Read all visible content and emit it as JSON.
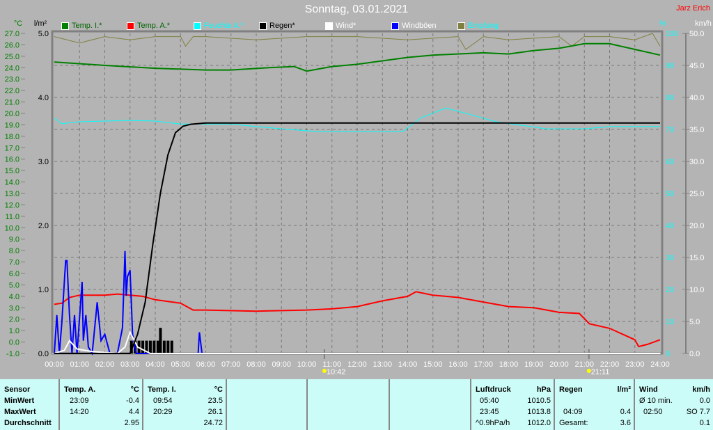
{
  "header": {
    "title": "Sonntag, 03.01.2021",
    "author": "Jarz Erich"
  },
  "legend": [
    {
      "label": "Temp. I.*",
      "color": "#008000",
      "text_color": "#006400"
    },
    {
      "label": "Temp. A.*",
      "color": "#ff0000",
      "text_color": "#006400"
    },
    {
      "label": "Feuchte A.*",
      "color": "#00ffff",
      "text_color": "#00ffff"
    },
    {
      "label": "Regen*",
      "color": "#000000",
      "text_color": "#000000"
    },
    {
      "label": "Wind*",
      "color": "#ffffff",
      "text_color": "#ffffff"
    },
    {
      "label": "Windböen",
      "color": "#0000ff",
      "text_color": "#ffffff"
    },
    {
      "label": "Empfang",
      "color": "#808040",
      "text_color": "#00ffff"
    }
  ],
  "chart_data": {
    "type": "line",
    "title": "Sonntag, 03.01.2021",
    "grid": true,
    "x_ticks": [
      "00:00",
      "01:00",
      "02:00",
      "03:00",
      "04:00",
      "05:00",
      "06:00",
      "07:00",
      "08:00",
      "09:00",
      "10:00",
      "11:00",
      "12:00",
      "13:00",
      "14:00",
      "15:00",
      "16:00",
      "17:00",
      "18:00",
      "19:00",
      "20:00",
      "21:00",
      "22:00",
      "23:00",
      "24:00"
    ],
    "axes": {
      "temp": {
        "unit": "°C",
        "range": [
          -1,
          27
        ],
        "ticks": [
          "27.0",
          "26.0",
          "25.0",
          "24.0",
          "23.0",
          "22.0",
          "21.0",
          "20.0",
          "19.0",
          "18.0",
          "17.0",
          "16.0",
          "15.0",
          "14.0",
          "13.0",
          "12.0",
          "11.0",
          "10.0",
          "9.0",
          "8.0",
          "7.0",
          "6.0",
          "5.0",
          "4.0",
          "3.0",
          "2.0",
          "1.0",
          "0.0",
          "-1.0"
        ]
      },
      "rain": {
        "unit": "l/m²",
        "range": [
          0,
          5
        ],
        "ticks": [
          "5.0",
          "4.0",
          "3.0",
          "2.0",
          "1.0",
          "0.0"
        ]
      },
      "humidity": {
        "unit": "%",
        "range": [
          0,
          100
        ],
        "ticks": [
          "100",
          "90",
          "80",
          "70",
          "60",
          "50",
          "40",
          "30",
          "20",
          "10",
          "0"
        ]
      },
      "wind": {
        "unit": "km/h",
        "range": [
          0,
          50
        ],
        "ticks": [
          "50.0",
          "45.0",
          "40.0",
          "35.0",
          "30.0",
          "25.0",
          "20.0",
          "15.0",
          "10.0",
          "5.0",
          "0.0"
        ]
      }
    },
    "markers": [
      {
        "time": "10:42",
        "hour": 10.7
      },
      {
        "time": "21:11",
        "hour": 21.18
      }
    ],
    "series": [
      {
        "name": "Temp. I.*",
        "axis": "temp",
        "color": "#008000",
        "x": [
          0,
          2,
          4,
          6,
          7,
          8.5,
          9.5,
          10,
          11,
          12,
          14,
          15,
          17,
          18,
          19,
          20,
          21,
          22,
          23,
          24
        ],
        "y": [
          24.5,
          24.2,
          23.95,
          23.8,
          23.8,
          24,
          24.1,
          23.7,
          24.1,
          24.3,
          24.9,
          25.1,
          25.3,
          25.2,
          25.5,
          25.7,
          26.1,
          26.1,
          25.6,
          25.1
        ]
      },
      {
        "name": "Temp. A.*",
        "axis": "temp",
        "color": "#ff0000",
        "x": [
          0,
          0.3,
          0.6,
          1,
          2,
          2.5,
          3,
          3.5,
          4,
          5,
          5.5,
          6,
          8,
          10,
          11,
          12,
          13,
          14,
          14.33,
          15,
          16,
          17,
          18,
          19,
          20,
          20.8,
          21.2,
          22,
          23,
          23.15,
          23.5,
          24
        ],
        "y": [
          3.3,
          3.4,
          3.9,
          4.1,
          4.1,
          4.2,
          4.1,
          4.0,
          3.7,
          3.4,
          2.8,
          2.8,
          2.7,
          2.8,
          2.9,
          3.1,
          3.6,
          4.0,
          4.4,
          4.1,
          3.9,
          3.5,
          3.1,
          3.0,
          2.6,
          2.5,
          1.6,
          1.2,
          0.2,
          -0.4,
          -0.2,
          0.2
        ]
      },
      {
        "name": "Feuchte A.*",
        "axis": "humidity",
        "color": "#00ffff",
        "x": [
          0,
          0.3,
          1,
          2,
          3,
          4,
          5,
          6,
          7,
          8,
          9,
          10.5,
          13.8,
          14.5,
          15.5,
          16.5,
          17.5,
          18.5,
          19.5,
          21,
          22,
          24
        ],
        "y": [
          73.5,
          71.8,
          72.4,
          72.6,
          72.8,
          72.6,
          71.7,
          71.7,
          71.7,
          70.9,
          70.2,
          69.3,
          69.3,
          73.5,
          76.7,
          74.6,
          72.4,
          71.3,
          70.2,
          70.2,
          70.9,
          70.9
        ]
      },
      {
        "name": "Regen*",
        "axis": "rain",
        "color": "#000000",
        "x": [
          0,
          3,
          3.3,
          3.6,
          3.9,
          4.2,
          4.5,
          4.8,
          5.1,
          5.4,
          6,
          24
        ],
        "y": [
          0,
          0,
          0.3,
          0.8,
          1.7,
          2.5,
          3.1,
          3.45,
          3.55,
          3.58,
          3.6,
          3.6
        ]
      },
      {
        "name": "Wind*",
        "axis": "wind",
        "color": "#ffffff",
        "x": [
          0,
          0.4,
          0.6,
          0.9,
          1.5,
          2.5,
          2.8,
          3.0,
          3.3,
          3.8,
          24
        ],
        "y": [
          0,
          0.5,
          2,
          0.7,
          0.3,
          0,
          1,
          3.3,
          1,
          0,
          0
        ]
      },
      {
        "name": "Windböen",
        "axis": "wind",
        "color": "#0000ff",
        "x": [
          0,
          0.1,
          0.2,
          0.3,
          0.45,
          0.5,
          0.6,
          0.7,
          0.8,
          0.9,
          1.1,
          1.15,
          1.25,
          1.35,
          1.5,
          1.7,
          1.75,
          1.85,
          2.0,
          2.2,
          2.5,
          2.7,
          2.8,
          2.85,
          2.9,
          3.0,
          3.1,
          3.25,
          3.4,
          5.7,
          5.75,
          5.85,
          24
        ],
        "y": [
          0,
          6,
          0,
          5,
          14.5,
          14.5,
          6,
          0,
          6,
          0,
          11.2,
          2,
          6,
          1,
          0,
          8,
          6,
          2,
          3,
          0,
          0,
          4,
          16,
          9,
          12,
          13,
          3,
          0,
          0,
          0,
          3.3,
          0,
          0
        ]
      },
      {
        "name": "Empfang",
        "axis": "humidity",
        "color": "#808040",
        "x": [
          0,
          1,
          2,
          3,
          4,
          5,
          5.2,
          5.5,
          6,
          8,
          10,
          12,
          14,
          16,
          16.3,
          17,
          18,
          20,
          20.5,
          21,
          22,
          23,
          23.7,
          24
        ],
        "y": [
          99,
          97,
          99,
          98,
          99,
          99,
          96,
          99,
          99,
          98,
          99,
          99,
          98,
          99,
          95,
          99,
          98,
          99,
          96,
          99,
          99,
          98,
          100,
          96
        ]
      }
    ],
    "rain_bars": {
      "axis": "rain",
      "color": "#000000",
      "x": [
        3.0,
        3.15,
        3.3,
        3.45,
        3.6,
        3.75,
        3.9,
        4.05,
        4.15,
        4.3,
        4.45,
        4.6
      ],
      "y": [
        0.2,
        0.2,
        0.2,
        0.2,
        0.2,
        0.2,
        0.2,
        0.2,
        0.4,
        0.2,
        0.2,
        0.2
      ]
    }
  },
  "table": {
    "sensor": {
      "h": "Sensor",
      "r1": "MinWert",
      "r2": "MaxWert",
      "r3": "Durchschnitt"
    },
    "temp_a": {
      "h": "Temp. A.",
      "u": "°C",
      "min_t": "23:09",
      "min_v": "-0.4",
      "max_t": "14:20",
      "max_v": "4.4",
      "avg": "2.95"
    },
    "temp_i": {
      "h": "Temp. I.",
      "u": "°C",
      "min_t": "09:54",
      "min_v": "23.5",
      "max_t": "20:29",
      "max_v": "26.1",
      "avg": "24.72"
    },
    "pressure": {
      "h": "Luftdruck",
      "u": "hPa",
      "min_t": "05:40",
      "min_v": "1010.5",
      "max_t": "23:45",
      "max_v": "1013.8",
      "trend": "^0.9hPa/h",
      "avg": "1012.0"
    },
    "rain": {
      "h": "Regen",
      "u": "l/m²",
      "max_t": "04:09",
      "max_v": "0.4",
      "total_l": "Gesamt:",
      "total": "3.6"
    },
    "wind": {
      "h": "Wind",
      "u": "km/h",
      "avg10_l": "Ø 10 min.",
      "avg10": "0.0",
      "max_t": "02:50",
      "max_v": "SO 7.7",
      "avg": "0.1"
    }
  }
}
